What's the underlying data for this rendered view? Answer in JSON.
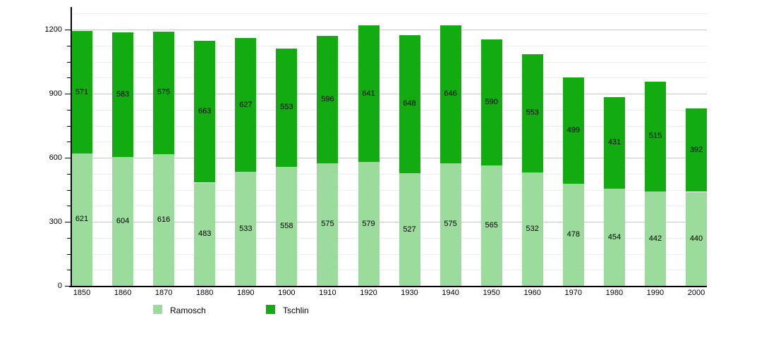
{
  "chart_data": {
    "type": "bar",
    "stacked": true,
    "title": "",
    "xlabel": "",
    "ylabel": "",
    "categories": [
      "1850",
      "1860",
      "1870",
      "1880",
      "1890",
      "1900",
      "1910",
      "1920",
      "1930",
      "1940",
      "1950",
      "1960",
      "1970",
      "1980",
      "1990",
      "2000"
    ],
    "series": [
      {
        "name": "Ramosch",
        "color": "#9BDB9B",
        "values": [
          621,
          604,
          616,
          483,
          533,
          558,
          575,
          579,
          527,
          575,
          565,
          532,
          478,
          454,
          442,
          440
        ]
      },
      {
        "name": "Tschlin",
        "color": "#12AC12",
        "values": [
          571,
          583,
          575,
          663,
          627,
          553,
          596,
          641,
          648,
          646,
          590,
          553,
          499,
          431,
          515,
          392
        ]
      }
    ],
    "ylim": [
      0,
      1306
    ],
    "yticks": [
      0,
      300,
      600,
      900,
      1200
    ],
    "minor_grid_step": 75,
    "minor_grid_max": 1275,
    "grid": true,
    "legend_position": "bottom",
    "value_labels": true,
    "colors": {
      "minor_grid": "#ececec",
      "major_grid": "#c6c6c6",
      "axis": "#000000",
      "text": "#000000",
      "background": "#ffffff"
    }
  }
}
